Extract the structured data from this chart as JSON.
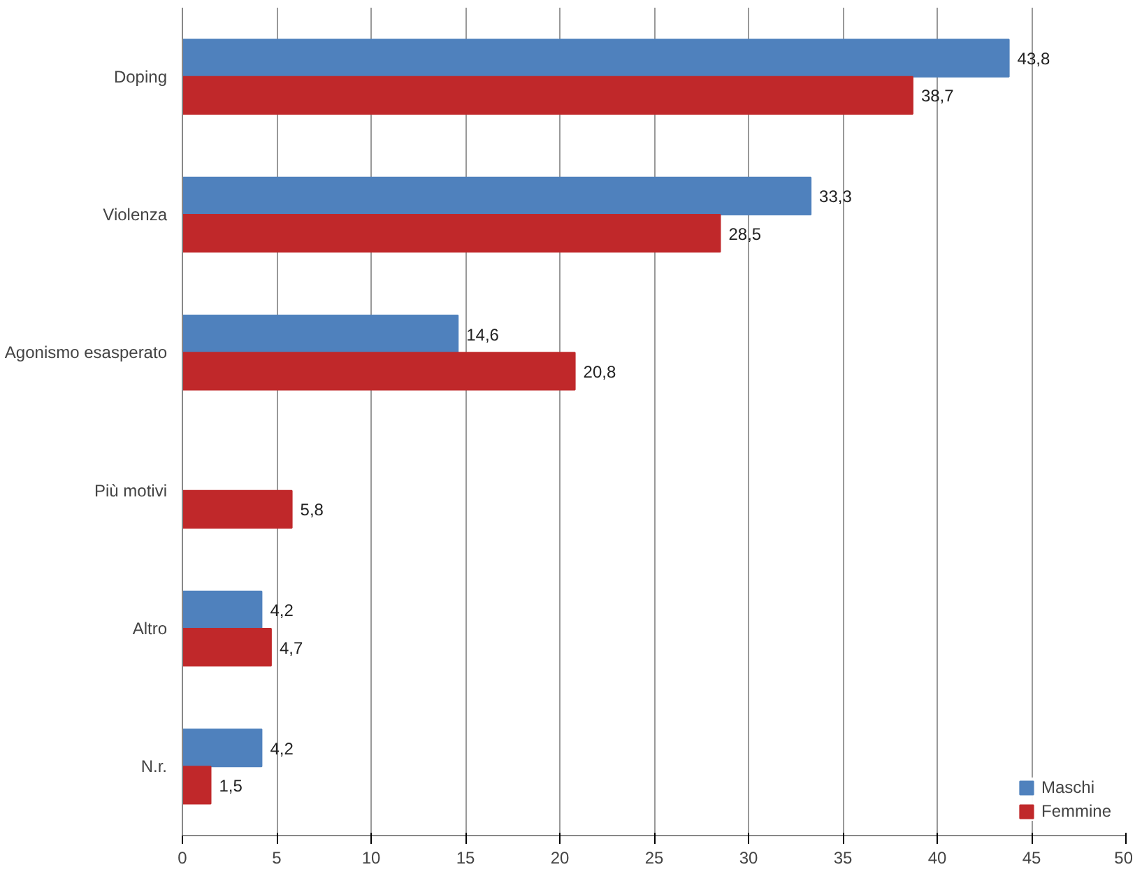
{
  "chart_data": {
    "type": "bar",
    "orientation": "horizontal",
    "categories": [
      "Doping",
      "Violenza",
      "Agonismo esasperato",
      "Più motivi",
      "Altro",
      "N.r."
    ],
    "series": [
      {
        "name": "Maschi",
        "color": "#4f81bd",
        "values": [
          43.8,
          33.3,
          14.6,
          null,
          4.2,
          4.2
        ],
        "value_labels": [
          "43,8",
          "33,3",
          "14,6",
          null,
          "4,2",
          "4,2"
        ]
      },
      {
        "name": "Femmine",
        "color": "#c0282a",
        "values": [
          38.7,
          28.5,
          20.8,
          5.8,
          4.7,
          1.5
        ],
        "value_labels": [
          "38,7",
          "28,5",
          "20,8",
          "5,8",
          "4,7",
          "1,5"
        ]
      }
    ],
    "xlim": [
      0,
      50
    ],
    "xticks": [
      0,
      5,
      10,
      15,
      20,
      25,
      30,
      35,
      40,
      45,
      50
    ],
    "grid": "x",
    "legend": "bottom right"
  }
}
